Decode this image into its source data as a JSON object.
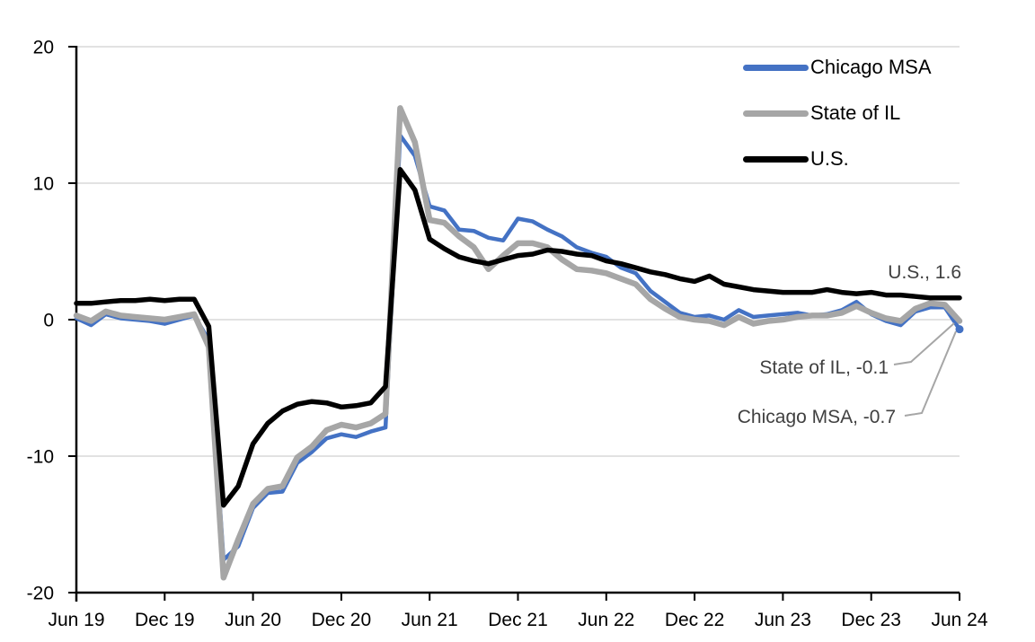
{
  "chart_data": {
    "type": "line",
    "x_unit": "month",
    "x_start": "Jun 2019",
    "x_end": "Jun 2024",
    "x_tick_labels": [
      "Jun 19",
      "Dec 19",
      "Jun 20",
      "Dec 20",
      "Jun 21",
      "Dec 21",
      "Jun 22",
      "Dec 22",
      "Jun 23",
      "Dec 23",
      "Jun 24"
    ],
    "y_ticks": [
      20,
      10,
      0,
      -10,
      -20
    ],
    "ylim": [
      -20,
      20
    ],
    "grid": true,
    "legend_position": "top-right",
    "series": [
      {
        "name": "Chicago MSA",
        "color": "#4472C4",
        "end_value": -0.7,
        "values": [
          0.1,
          -0.4,
          0.4,
          0.1,
          0.0,
          -0.1,
          -0.3,
          0.0,
          0.3,
          -1.5,
          -17.6,
          -16.6,
          -13.8,
          -12.7,
          -12.6,
          -10.5,
          -9.7,
          -8.7,
          -8.4,
          -8.6,
          -8.2,
          -7.9,
          13.5,
          12.0,
          8.3,
          8.0,
          6.6,
          6.5,
          6.0,
          5.8,
          7.4,
          7.2,
          6.6,
          6.1,
          5.3,
          4.9,
          4.6,
          3.8,
          3.4,
          2.1,
          1.3,
          0.5,
          0.2,
          0.3,
          0.0,
          0.7,
          0.2,
          0.3,
          0.4,
          0.5,
          0.3,
          0.4,
          0.7,
          1.3,
          0.4,
          -0.1,
          -0.4,
          0.6,
          0.9,
          0.9,
          -0.7
        ]
      },
      {
        "name": "State of IL",
        "color": "#A6A6A6",
        "end_value": -0.1,
        "values": [
          0.3,
          -0.1,
          0.6,
          0.3,
          0.2,
          0.1,
          0.0,
          0.2,
          0.4,
          -2.0,
          -18.9,
          -16.1,
          -13.5,
          -12.4,
          -12.2,
          -10.1,
          -9.3,
          -8.1,
          -7.7,
          -7.9,
          -7.6,
          -6.9,
          15.5,
          13.0,
          7.3,
          7.1,
          6.1,
          5.3,
          3.7,
          4.7,
          5.6,
          5.6,
          5.3,
          4.4,
          3.7,
          3.6,
          3.4,
          3.0,
          2.6,
          1.5,
          0.8,
          0.2,
          0.0,
          -0.1,
          -0.4,
          0.2,
          -0.3,
          -0.1,
          0.0,
          0.2,
          0.3,
          0.3,
          0.5,
          1.0,
          0.5,
          0.1,
          -0.1,
          0.8,
          1.2,
          1.1,
          -0.1
        ]
      },
      {
        "name": "U.S.",
        "color": "#000000",
        "end_value": 1.6,
        "values": [
          1.2,
          1.2,
          1.3,
          1.4,
          1.4,
          1.5,
          1.4,
          1.5,
          1.5,
          -0.5,
          -13.6,
          -12.2,
          -9.1,
          -7.6,
          -6.7,
          -6.2,
          -6.0,
          -6.1,
          -6.4,
          -6.3,
          -6.1,
          -4.9,
          11.0,
          9.5,
          5.9,
          5.2,
          4.6,
          4.3,
          4.1,
          4.4,
          4.7,
          4.8,
          5.1,
          5.0,
          4.8,
          4.7,
          4.3,
          4.1,
          3.8,
          3.5,
          3.3,
          3.0,
          2.8,
          3.2,
          2.6,
          2.4,
          2.2,
          2.1,
          2.0,
          2.0,
          2.0,
          2.2,
          2.0,
          1.9,
          2.0,
          1.8,
          1.8,
          1.7,
          1.6,
          1.6,
          1.6
        ]
      }
    ]
  },
  "legend": {
    "items": [
      {
        "label": "Chicago MSA"
      },
      {
        "label": "State of IL"
      },
      {
        "label": "U.S."
      }
    ]
  },
  "annotations": {
    "us": "U.S., 1.6",
    "il": "State of IL, -0.1",
    "chicago": "Chicago MSA, -0.7"
  },
  "colors": {
    "chicago_msa": "#4472C4",
    "state_of_il": "#A6A6A6",
    "us": "#000000",
    "gridline": "#D9D9D9",
    "axis": "#000000",
    "annotation_text": "#404040",
    "leader_line": "#A6A6A6",
    "background": "#FFFFFF"
  }
}
